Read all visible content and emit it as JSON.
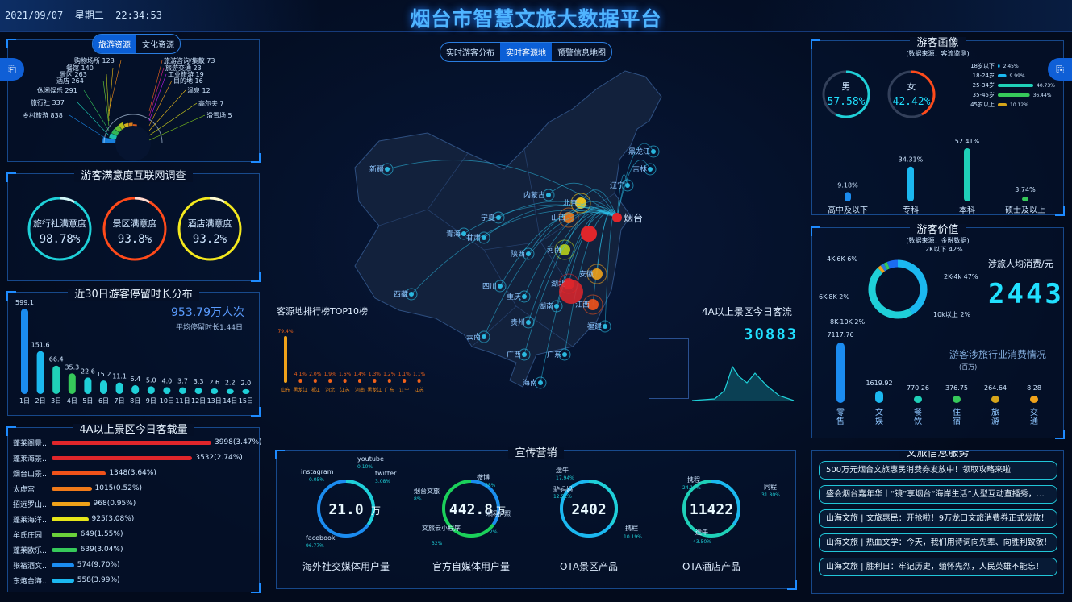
{
  "header": {
    "datetime": "2021/09/07  星期二  22:34:53",
    "title": "烟台市智慧文旅大数据平台"
  },
  "resources": {
    "tabs": [
      "旅游资源",
      "文化资源"
    ],
    "active": 0,
    "items_left": [
      {
        "label": "购物场所",
        "value": 123
      },
      {
        "label": "餐馆",
        "value": 140
      },
      {
        "label": "景区",
        "value": 263
      },
      {
        "label": "酒店",
        "value": 264
      },
      {
        "label": "休闲娱乐",
        "value": 291
      },
      {
        "label": "旅行社",
        "value": 337
      },
      {
        "label": "乡村旅游",
        "value": 838
      }
    ],
    "items_right": [
      {
        "label": "旅游咨询/集散",
        "value": 73
      },
      {
        "label": "旅游交通",
        "value": 23
      },
      {
        "label": "工业旅游",
        "value": 19
      },
      {
        "label": "目的地",
        "value": 16
      },
      {
        "label": "温泉",
        "value": 12
      },
      {
        "label": "高尔夫",
        "value": 7
      },
      {
        "label": "滑雪场",
        "value": 5
      }
    ]
  },
  "satisfaction": {
    "title": "游客满意度互联网调查",
    "items": [
      {
        "label": "旅行社满意度",
        "value": "98.78%",
        "color": "#1fd0d8"
      },
      {
        "label": "景区满意度",
        "value": "93.8%",
        "color": "#ff4a1a"
      },
      {
        "label": "酒店满意度",
        "value": "93.2%",
        "color": "#f3e81e"
      }
    ]
  },
  "stay": {
    "title": "近30日游客停留时长分布",
    "total": "953.79万人次",
    "avg": "平均停留时长1.44日",
    "days": [
      "1日",
      "2日",
      "3日",
      "4日",
      "5日",
      "6日",
      "7日",
      "8日",
      "9日",
      "10日",
      "11日",
      "12日",
      "13日",
      "14日",
      "15日"
    ],
    "values": [
      599.1,
      151.6,
      66.4,
      35.3,
      22.6,
      15.2,
      11.1,
      6.4,
      5.0,
      4.0,
      3.7,
      3.3,
      2.6,
      2.2,
      2.0
    ]
  },
  "capacity": {
    "title": "4A以上景区今日客载量",
    "rows": [
      {
        "name": "蓬莱阁景…",
        "value": "3998(3.47%)",
        "ratio": 1.0,
        "color": "#e0262b"
      },
      {
        "name": "蓬莱海景…",
        "value": "3532(2.74%)",
        "ratio": 0.88,
        "color": "#e0262b"
      },
      {
        "name": "烟台山景…",
        "value": "1348(3.64%)",
        "ratio": 0.34,
        "color": "#f0521a"
      },
      {
        "name": "太虚宫",
        "value": "1015(0.52%)",
        "ratio": 0.25,
        "color": "#f07a1a"
      },
      {
        "name": "招远罗山…",
        "value": "968(0.95%)",
        "ratio": 0.24,
        "color": "#f0a21a"
      },
      {
        "name": "蓬莱海洋…",
        "value": "925(3.08%)",
        "ratio": 0.23,
        "color": "#e6e61a"
      },
      {
        "name": "牟氏庄园",
        "value": "649(1.55%)",
        "ratio": 0.16,
        "color": "#6bd13a"
      },
      {
        "name": "蓬莱欧乐…",
        "value": "639(3.04%)",
        "ratio": 0.16,
        "color": "#36c95a"
      },
      {
        "name": "张裕酒文…",
        "value": "574(9.70%)",
        "ratio": 0.14,
        "color": "#1b8cf0"
      },
      {
        "name": "东炮台海…",
        "value": "558(3.99%)",
        "ratio": 0.14,
        "color": "#1bb8f0"
      }
    ]
  },
  "map": {
    "tabs": [
      "实时游客分布",
      "实时客源地",
      "预警信息地图"
    ],
    "active": 1,
    "target": "烟台",
    "provinces": [
      "黑龙江",
      "吉林",
      "辽宁",
      "内蒙古",
      "北京",
      "新疆",
      "宁夏",
      "山西",
      "青海",
      "甘肃",
      "陕西",
      "河南",
      "四川",
      "重庆",
      "贵州",
      "湖北",
      "湖南",
      "江西",
      "安徽",
      "云南",
      "广西",
      "广东",
      "福建",
      "西藏",
      "海南"
    ],
    "rank_title": "客源地排行榜TOP10榜",
    "rank": [
      {
        "name": "山东",
        "pct": "79.4%"
      },
      {
        "name": "黑龙江",
        "pct": "4.1%"
      },
      {
        "name": "浙江",
        "pct": "2.0%"
      },
      {
        "name": "河北",
        "pct": "1.9%"
      },
      {
        "name": "江苏",
        "pct": "1.6%"
      },
      {
        "name": "河南",
        "pct": "1.4%"
      },
      {
        "name": "黑龙江",
        "pct": "1.3%"
      },
      {
        "name": "广东",
        "pct": "1.2%"
      },
      {
        "name": "辽宁",
        "pct": "1.1%"
      },
      {
        "name": "江苏",
        "pct": "1.1%"
      }
    ],
    "flow_title": "4A以上景区今日客流",
    "flow_value": "30883"
  },
  "marketing": {
    "title": "宣传营销",
    "rings": [
      {
        "caption": "海外社交媒体用户量",
        "value": "21.0",
        "unit": "万",
        "labels": [
          "instagram",
          "0.05%",
          "youtube",
          "0.10%",
          "twitter",
          "3.08%",
          "facebook",
          "96.77%"
        ]
      },
      {
        "caption": "官方自媒体用户量",
        "value": "442.8",
        "unit": "万",
        "labels": [
          "微博",
          "58%",
          "烟台文旅",
          "8%",
          "休闲护照",
          "2%",
          "文旅云小程序",
          "32%"
        ]
      },
      {
        "caption": "OTA景区产品",
        "value": "2402",
        "unit": "",
        "labels": [
          "途牛",
          "17.94%",
          "驴妈妈",
          "12.51%",
          "携程",
          "10.19%"
        ]
      },
      {
        "caption": "OTA酒店产品",
        "value": "11422",
        "unit": "",
        "labels": [
          "携程",
          "24.11%",
          "同程",
          "31.80%",
          "途牛",
          "43.50%"
        ]
      }
    ]
  },
  "portrait": {
    "title": "游客画像",
    "source": "(数据来源：客流监测)",
    "male": {
      "label": "男",
      "value": "57.58%"
    },
    "female": {
      "label": "女",
      "value": "42.42%"
    },
    "ages": [
      {
        "label": "18岁以下",
        "value": "2.45%",
        "ratio": 0.06
      },
      {
        "label": "18-24岁",
        "value": "9.99%",
        "ratio": 0.24
      },
      {
        "label": "25-34岁",
        "value": "40.73%",
        "ratio": 1.0
      },
      {
        "label": "35-45岁",
        "value": "36.44%",
        "ratio": 0.9
      },
      {
        "label": "45岁以上",
        "value": "10.12%",
        "ratio": 0.25
      }
    ],
    "edu": [
      {
        "label": "高中及以下",
        "value": "9.18%",
        "ratio": 0.176
      },
      {
        "label": "专科",
        "value": "34.31%",
        "ratio": 0.656
      },
      {
        "label": "本科",
        "value": "52.41%",
        "ratio": 1.0
      },
      {
        "label": "硕士及以上",
        "value": "3.74%",
        "ratio": 0.072
      }
    ]
  },
  "value": {
    "title": "游客价值",
    "source": "(数据来源：金融数据)",
    "per_label": "涉旅人均消费/元",
    "per_value": "2443",
    "donut": [
      {
        "label": "2K以下 42%",
        "pct": 42,
        "color": "#1bb8f0"
      },
      {
        "label": "2K-4k 47%",
        "pct": 47,
        "color": "#1fd0d8"
      },
      {
        "label": "10k以上 2%",
        "pct": 2,
        "color": "#f0a21a"
      },
      {
        "label": "8K-10K 2%",
        "pct": 2,
        "color": "#2a7de0"
      },
      {
        "label": "6K-8K 2%",
        "pct": 2,
        "color": "#36c95a"
      },
      {
        "label": "4K-6K 6%",
        "pct": 6,
        "color": "#1b6cf0"
      }
    ],
    "spend_title": "游客涉旅行业消费情况",
    "spend_unit": "(百万)",
    "spend": [
      {
        "label": "零售",
        "value": "7117.76",
        "ratio": 1.0,
        "color": "#1b8cf0"
      },
      {
        "label": "文娱",
        "value": "1619.92",
        "ratio": 0.2,
        "color": "#1bb8f0"
      },
      {
        "label": "餐饮",
        "value": "770.26",
        "ratio": 0.1,
        "color": "#1fd0b8"
      },
      {
        "label": "住宿",
        "value": "376.75",
        "ratio": 0.05,
        "color": "#36c95a"
      },
      {
        "label": "旅游",
        "value": "264.64",
        "ratio": 0.04,
        "color": "#d6a51a"
      },
      {
        "label": "交通",
        "value": "8.28",
        "ratio": 0.02,
        "color": "#f0a21a"
      }
    ]
  },
  "news": {
    "title": "文旅信息服务",
    "items": [
      "500万元烟台文旅惠民消费券发放中！领取攻略来啦",
      "盛会烟台嘉年华丨“镜”享烟台“海岸生活”大型互动直播秀，…",
      "山海文旅 | 文旅惠民：开抢啦！9万龙口文旅消费券正式发放！",
      "山海文旅 | 热血文学：今天，我们用诗词向先辈、向胜利致敬！",
      "山海文旅 | 胜利日：牢记历史，缅怀先烈，人民英雄不能忘！"
    ]
  }
}
